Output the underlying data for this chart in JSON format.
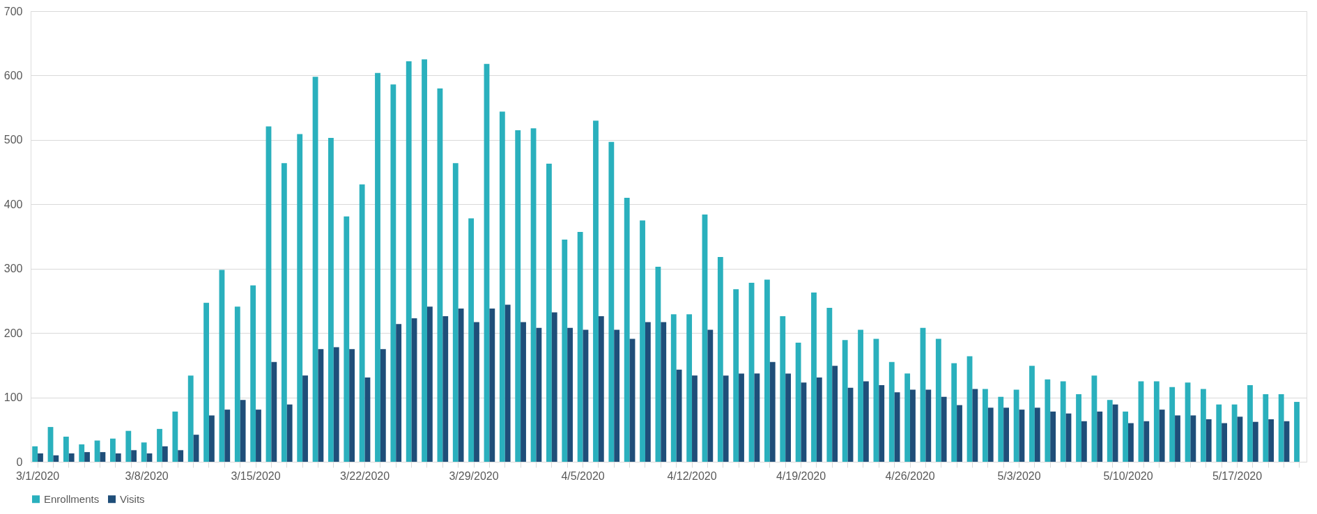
{
  "chart_data": {
    "type": "bar",
    "categories": [
      "3/1/2020",
      null,
      null,
      null,
      null,
      null,
      null,
      "3/8/2020",
      null,
      null,
      null,
      null,
      null,
      null,
      "3/15/2020",
      null,
      null,
      null,
      null,
      null,
      null,
      "3/22/2020",
      null,
      null,
      null,
      null,
      null,
      null,
      "3/29/2020",
      null,
      null,
      null,
      null,
      null,
      null,
      "4/5/2020",
      null,
      null,
      null,
      null,
      null,
      null,
      "4/12/2020",
      null,
      null,
      null,
      null,
      null,
      null,
      "4/19/2020",
      null,
      null,
      null,
      null,
      null,
      null,
      "4/26/2020",
      null,
      null,
      null,
      null,
      null,
      null,
      "5/3/2020",
      null,
      null,
      null,
      null,
      null,
      null,
      "5/10/2020",
      null,
      null,
      null,
      null,
      null,
      null,
      "5/17/2020",
      null,
      null,
      null,
      null
    ],
    "series": [
      {
        "name": "Enrollments",
        "color": "#2ab0bd",
        "values": [
          24,
          54,
          39,
          27,
          33,
          36,
          48,
          30,
          51,
          78,
          134,
          247,
          298,
          241,
          274,
          521,
          464,
          509,
          598,
          503,
          381,
          431,
          604,
          586,
          622,
          625,
          580,
          464,
          378,
          618,
          544,
          515,
          518,
          463,
          345,
          357,
          530,
          497,
          410,
          375,
          303,
          229,
          229,
          384,
          318,
          268,
          278,
          283,
          226,
          185,
          263,
          239,
          189,
          205,
          191,
          155,
          137,
          208,
          191,
          153,
          164,
          113,
          101,
          112,
          149,
          128,
          125,
          105,
          134,
          96,
          78,
          125,
          125,
          116,
          123,
          113,
          89,
          89,
          119,
          105,
          105,
          93
        ]
      },
      {
        "name": "Visits",
        "color": "#1f4e79",
        "values": [
          13,
          10,
          13,
          15,
          15,
          13,
          18,
          13,
          24,
          18,
          42,
          72,
          81,
          96,
          81,
          155,
          89,
          134,
          175,
          178,
          175,
          131,
          175,
          214,
          223,
          241,
          226,
          238,
          217,
          238,
          244,
          217,
          208,
          232,
          208,
          205,
          226,
          205,
          191,
          217,
          217,
          143,
          134,
          205,
          134,
          137,
          137,
          155,
          137,
          123,
          131,
          149,
          115,
          125,
          119,
          108,
          112,
          112,
          101,
          88,
          113,
          84,
          84,
          81,
          84,
          78,
          75,
          63,
          78,
          89,
          60,
          63,
          81,
          72,
          72,
          66,
          60,
          70,
          62,
          66,
          63,
          null
        ]
      }
    ],
    "ylim": [
      0,
      700
    ],
    "yticks": [
      0,
      100,
      200,
      300,
      400,
      500,
      600,
      700
    ],
    "grid": "y",
    "legend": "bottom"
  }
}
